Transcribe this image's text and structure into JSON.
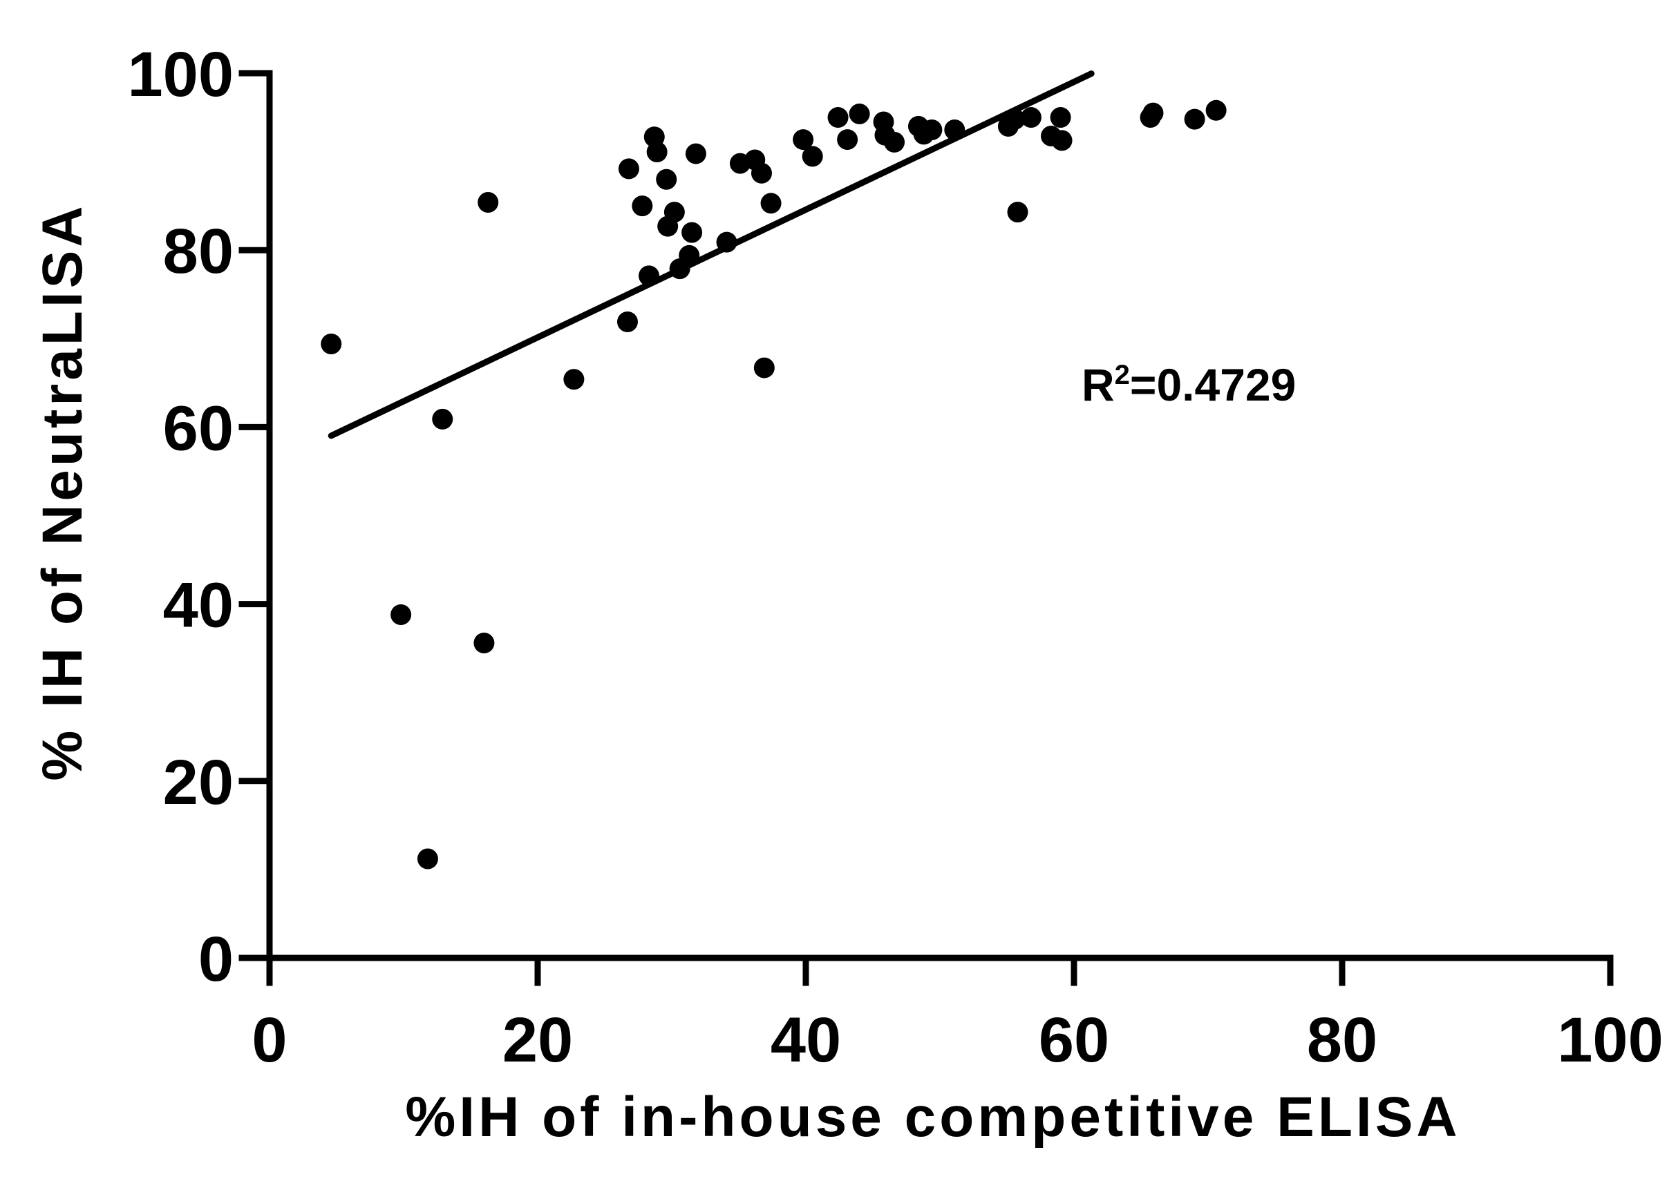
{
  "chart_data": {
    "type": "scatter",
    "title": "",
    "xlabel": "%IH of in-house competitive ELISA",
    "ylabel": "% IH of NeutraLISA",
    "xlim": [
      0,
      100
    ],
    "ylim": [
      0,
      100
    ],
    "xticks": [
      0,
      20,
      40,
      60,
      80,
      100
    ],
    "yticks": [
      0,
      20,
      40,
      60,
      80,
      100
    ],
    "xtick_labels": [
      "0",
      "20",
      "40",
      "60",
      "80",
      "100"
    ],
    "ytick_labels": [
      "0",
      "20",
      "40",
      "60",
      "80",
      "100"
    ],
    "grid": false,
    "legend": "none",
    "annotation": {
      "base": "R",
      "sup": "2",
      "rest": "=0.4729"
    },
    "marker_color": "#000000",
    "points": [
      {
        "x": 4.6,
        "y": 69.4
      },
      {
        "x": 9.8,
        "y": 38.8
      },
      {
        "x": 11.8,
        "y": 11.2
      },
      {
        "x": 12.9,
        "y": 60.9
      },
      {
        "x": 16.0,
        "y": 35.6
      },
      {
        "x": 16.3,
        "y": 85.4
      },
      {
        "x": 22.7,
        "y": 65.4
      },
      {
        "x": 26.7,
        "y": 71.9
      },
      {
        "x": 26.8,
        "y": 89.2
      },
      {
        "x": 27.8,
        "y": 85.0
      },
      {
        "x": 28.3,
        "y": 77.1
      },
      {
        "x": 28.7,
        "y": 92.8
      },
      {
        "x": 28.9,
        "y": 91.1
      },
      {
        "x": 29.6,
        "y": 88.0
      },
      {
        "x": 29.7,
        "y": 82.7
      },
      {
        "x": 30.2,
        "y": 84.3
      },
      {
        "x": 30.6,
        "y": 77.9
      },
      {
        "x": 31.3,
        "y": 79.4
      },
      {
        "x": 31.5,
        "y": 82.0
      },
      {
        "x": 31.8,
        "y": 90.9
      },
      {
        "x": 34.1,
        "y": 80.9
      },
      {
        "x": 35.1,
        "y": 89.8
      },
      {
        "x": 36.2,
        "y": 90.2
      },
      {
        "x": 36.7,
        "y": 88.7
      },
      {
        "x": 36.9,
        "y": 66.7
      },
      {
        "x": 37.4,
        "y": 85.3
      },
      {
        "x": 39.8,
        "y": 92.5
      },
      {
        "x": 40.5,
        "y": 90.6
      },
      {
        "x": 42.4,
        "y": 95.0
      },
      {
        "x": 43.1,
        "y": 92.5
      },
      {
        "x": 44.0,
        "y": 95.4
      },
      {
        "x": 45.8,
        "y": 94.5
      },
      {
        "x": 45.9,
        "y": 93.0
      },
      {
        "x": 46.6,
        "y": 92.2
      },
      {
        "x": 48.4,
        "y": 94.0
      },
      {
        "x": 48.8,
        "y": 93.1
      },
      {
        "x": 49.4,
        "y": 93.6
      },
      {
        "x": 51.1,
        "y": 93.6
      },
      {
        "x": 55.1,
        "y": 94.0
      },
      {
        "x": 55.6,
        "y": 94.8
      },
      {
        "x": 55.8,
        "y": 84.3
      },
      {
        "x": 56.8,
        "y": 95.0
      },
      {
        "x": 58.3,
        "y": 92.9
      },
      {
        "x": 59.0,
        "y": 95.0
      },
      {
        "x": 59.1,
        "y": 92.4
      },
      {
        "x": 65.7,
        "y": 95.0
      },
      {
        "x": 65.9,
        "y": 95.5
      },
      {
        "x": 69.0,
        "y": 94.8
      },
      {
        "x": 70.6,
        "y": 95.8
      }
    ],
    "fit_line": {
      "x_start": 4.6,
      "x_end": 61.3,
      "slope": 0.722,
      "intercept": 55.7
    }
  }
}
